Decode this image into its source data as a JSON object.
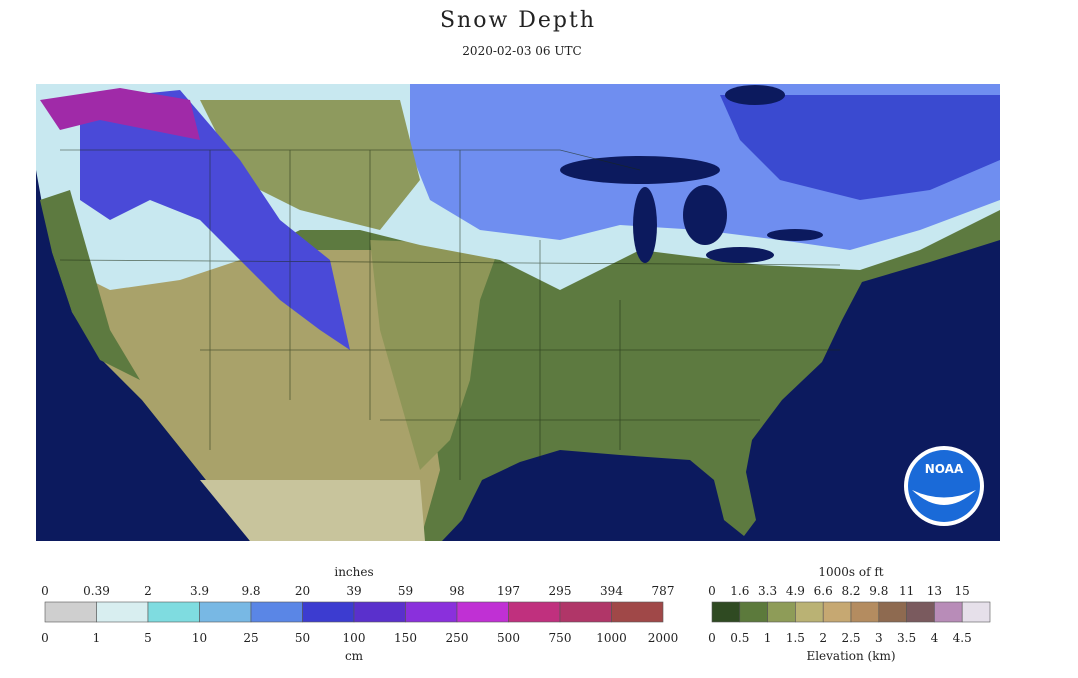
{
  "header": {
    "title": "Snow Depth",
    "timestamp": "2020-02-03 06 UTC"
  },
  "logo": "NOAA",
  "snow_legend": {
    "top_unit": "inches",
    "top_labels": [
      "0",
      "0.39",
      "2",
      "3.9",
      "9.8",
      "20",
      "39",
      "59",
      "98",
      "197",
      "295",
      "394",
      "787"
    ],
    "bottom_unit": "cm",
    "bottom_labels": [
      "0",
      "1",
      "5",
      "10",
      "25",
      "50",
      "100",
      "150",
      "250",
      "500",
      "750",
      "1000",
      "2000"
    ],
    "colors": [
      "#cfcfcf",
      "#d8eef0",
      "#7fdce0",
      "#78b8e4",
      "#5a86e6",
      "#3c3cd0",
      "#5a30cc",
      "#8a30dc",
      "#c030d4",
      "#c0307e",
      "#b03668",
      "#a04848"
    ]
  },
  "elevation_legend": {
    "top_unit": "1000s of ft",
    "top_labels": [
      "0",
      "1.6",
      "3.3",
      "4.9",
      "6.6",
      "8.2",
      "9.8",
      "11",
      "13",
      "15"
    ],
    "bottom_unit": "Elevation (km)",
    "bottom_labels": [
      "0",
      "0.5",
      "1",
      "1.5",
      "2",
      "2.5",
      "3",
      "3.5",
      "4",
      "4.5"
    ],
    "colors": [
      "#2f4a22",
      "#5c7a3c",
      "#8e9c58",
      "#bab274",
      "#c6a872",
      "#b48c60",
      "#8e6a50",
      "#7a5a5e",
      "#b88cb8",
      "#e6e0ea"
    ]
  }
}
